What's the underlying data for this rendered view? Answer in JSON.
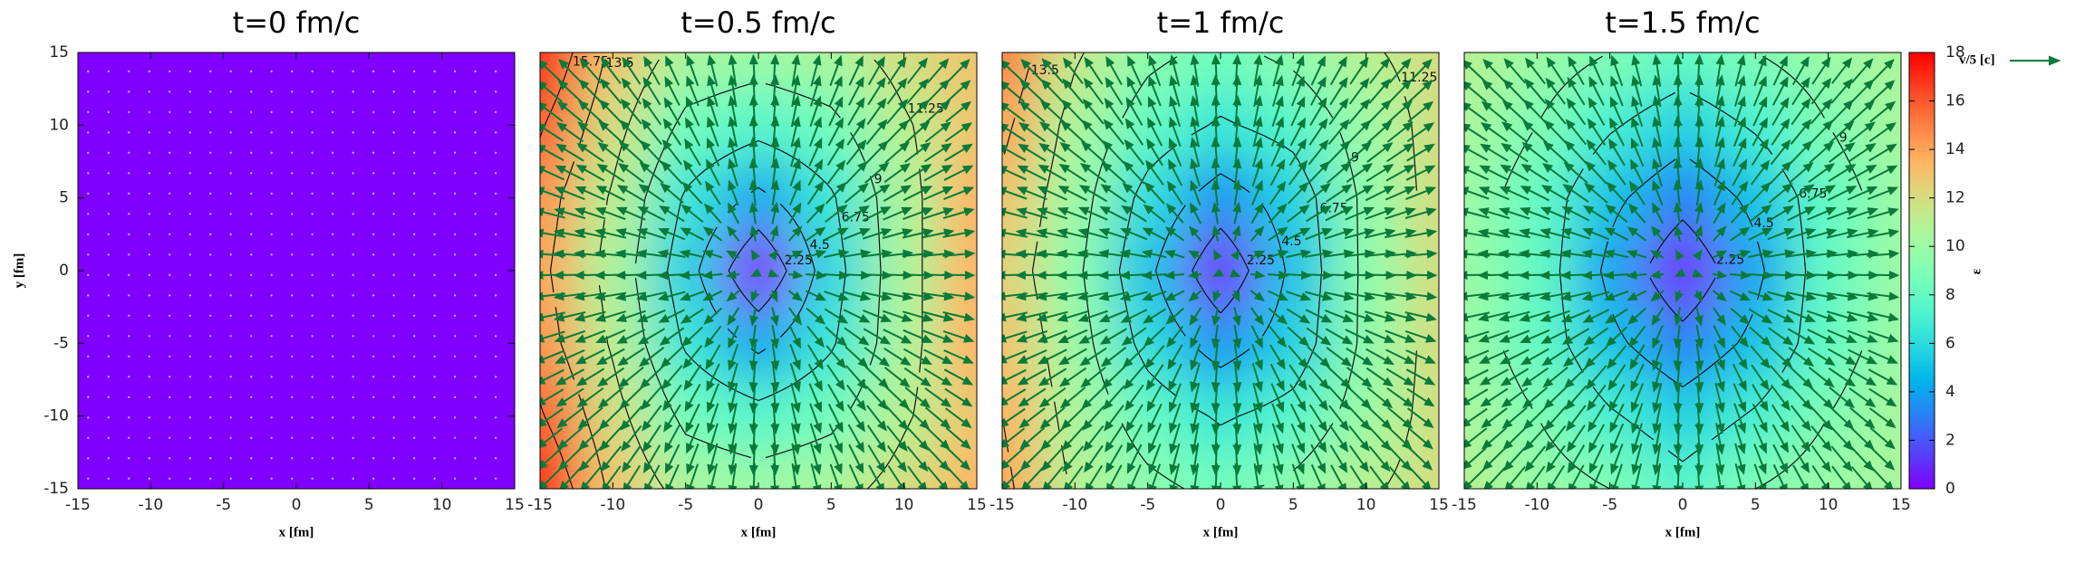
{
  "chart_data": [
    {
      "type": "heatmap",
      "title": "t=0 fm/c",
      "x_label": "x [fm]",
      "y_label": "y [fm]",
      "x": [
        -15,
        -10,
        -5,
        0,
        5,
        10,
        15
      ],
      "y": [
        15,
        10,
        5,
        0,
        -5,
        -10,
        -15
      ],
      "z": [
        [
          0,
          0,
          0,
          0,
          0,
          0,
          0
        ],
        [
          0,
          0,
          0,
          0,
          0,
          0,
          0
        ],
        [
          0,
          0,
          0,
          0,
          0,
          0,
          0
        ],
        [
          0,
          0,
          0,
          0,
          0,
          0,
          0
        ],
        [
          0,
          0,
          0,
          0,
          0,
          0,
          0
        ],
        [
          0,
          0,
          0,
          0,
          0,
          0,
          0
        ],
        [
          0,
          0,
          0,
          0,
          0,
          0,
          0
        ]
      ],
      "xlim": [
        -15,
        15
      ],
      "ylim": [
        -15,
        15
      ],
      "xticks": [
        -15,
        -10,
        -5,
        0,
        5,
        10,
        15
      ],
      "yticks": [
        -15,
        -10,
        -5,
        0,
        5,
        10,
        15
      ],
      "contour_levels": [],
      "vectors": false,
      "vector_color": "#b8a8e8"
    },
    {
      "type": "heatmap",
      "title": "t=0.5 fm/c",
      "x_label": "x [fm]",
      "x": [
        -15,
        -10,
        -5,
        0,
        5,
        10,
        15
      ],
      "y": [
        15,
        10,
        5,
        0,
        -5,
        -10,
        -15
      ],
      "z": [
        [
          18,
          13,
          10.5,
          10,
          10.5,
          12,
          13
        ],
        [
          16,
          12,
          8.5,
          7.5,
          8.5,
          11,
          13
        ],
        [
          14.5,
          11,
          6.5,
          4,
          6.5,
          10.5,
          13.5
        ],
        [
          14,
          10.5,
          5.5,
          0,
          5.8,
          10.5,
          13.5
        ],
        [
          14.5,
          11,
          6.5,
          4,
          6.5,
          10.5,
          13.5
        ],
        [
          16,
          12,
          8.5,
          7.5,
          8.5,
          11,
          13
        ],
        [
          18,
          13,
          10.5,
          10,
          10.5,
          12,
          13.5
        ]
      ],
      "xlim": [
        -15,
        15
      ],
      "ylim": [
        -15,
        15
      ],
      "xticks": [
        -15,
        -10,
        -5,
        0,
        5,
        10,
        15
      ],
      "contour_levels": [
        2.25,
        4.5,
        6.75,
        9,
        11.25,
        13.5,
        15.75
      ],
      "vectors": true,
      "vector_color": "#0b7a3a"
    },
    {
      "type": "heatmap",
      "title": "t=1 fm/c",
      "x_label": "x [fm]",
      "x": [
        -15,
        -10,
        -5,
        0,
        5,
        10,
        15
      ],
      "y": [
        15,
        10,
        5,
        0,
        -5,
        -10,
        -15
      ],
      "z": [
        [
          15,
          11.5,
          9.5,
          8.5,
          9.5,
          11,
          12
        ],
        [
          14,
          10.5,
          8,
          6.5,
          7.5,
          10,
          12
        ],
        [
          13,
          10,
          6,
          3.5,
          5.5,
          9.5,
          12
        ],
        [
          12.5,
          9.5,
          5,
          0.5,
          5,
          9.5,
          12
        ],
        [
          13,
          10,
          6,
          3.5,
          5.5,
          9.5,
          12
        ],
        [
          13.5,
          10.5,
          8,
          6.5,
          7.5,
          10,
          12
        ],
        [
          14,
          11,
          9.5,
          8.5,
          9.5,
          11,
          12
        ]
      ],
      "xlim": [
        -15,
        15
      ],
      "ylim": [
        -15,
        15
      ],
      "xticks": [
        -15,
        -10,
        -5,
        0,
        5,
        10,
        15
      ],
      "contour_levels": [
        2.25,
        4.5,
        6.75,
        9,
        11.25,
        13.5
      ],
      "vectors": true,
      "vector_color": "#0b7a3a"
    },
    {
      "type": "heatmap",
      "title": "t=1.5 fm/c",
      "x_label": "x [fm]",
      "x": [
        -15,
        -10,
        -5,
        0,
        5,
        10,
        15
      ],
      "y": [
        15,
        10,
        5,
        0,
        -5,
        -10,
        -15
      ],
      "z": [
        [
          11,
          10,
          9,
          8,
          9,
          10,
          10.5
        ],
        [
          10.5,
          9,
          7,
          5.5,
          7,
          9,
          10.5
        ],
        [
          10,
          8,
          5,
          3,
          5,
          8,
          10
        ],
        [
          10,
          8,
          4,
          0.5,
          4,
          8,
          10
        ],
        [
          10,
          8,
          5,
          3,
          5,
          8,
          10
        ],
        [
          10.5,
          9,
          7,
          5.5,
          7,
          9,
          10.5
        ],
        [
          11,
          10,
          9,
          7.5,
          9,
          10,
          10.5
        ]
      ],
      "xlim": [
        -15,
        15
      ],
      "ylim": [
        -15,
        15
      ],
      "xticks": [
        -15,
        -10,
        -5,
        0,
        5,
        10,
        15
      ],
      "contour_levels": [
        2.25,
        4.5,
        6.75,
        9
      ],
      "vectors": true,
      "vector_color": "#0b7a3a"
    },
    {
      "type": "colorbar",
      "label": "ε",
      "zlim": [
        0,
        18
      ],
      "zticks": [
        0,
        2,
        4,
        6,
        8,
        10,
        12,
        14,
        16,
        18
      ],
      "vector_label": "v/5 [c]",
      "vector_color": "#0b7a3a"
    }
  ]
}
